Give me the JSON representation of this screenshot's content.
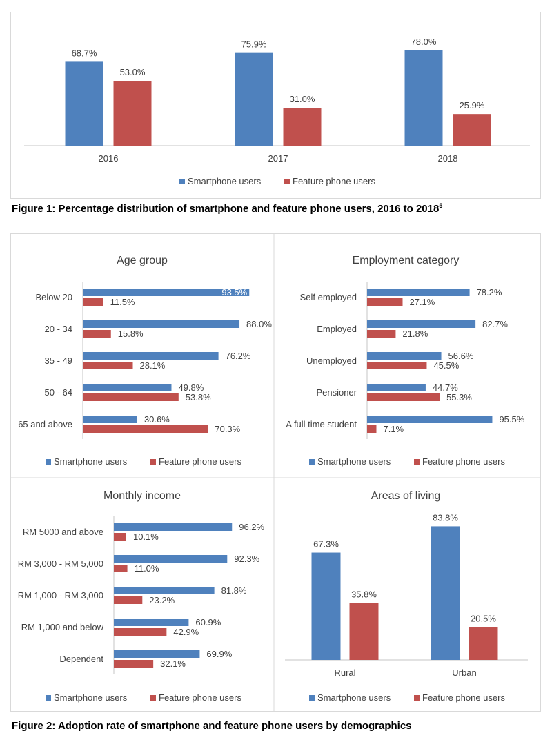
{
  "colors": {
    "smartphone": "#4f81bd",
    "feature": "#c0504d",
    "border": "#d9d9d9",
    "axis": "#d9d9d9"
  },
  "legend": [
    "Smartphone users",
    "Feature phone users"
  ],
  "figure1": {
    "caption": "Figure 1: Percentage distribution of smartphone and feature phone users, 2016 to 2018",
    "footnote": "5"
  },
  "figure2": {
    "caption": "Figure 2: Adoption rate of smartphone and feature phone users by demographics"
  },
  "chart_data": [
    {
      "type": "bar",
      "orientation": "vertical",
      "title": "",
      "categories": [
        "2016",
        "2017",
        "2018"
      ],
      "series": [
        {
          "name": "Smartphone users",
          "values": [
            68.7,
            75.9,
            78.0
          ],
          "labels": [
            "68.7%",
            "75.9%",
            "78.0%"
          ]
        },
        {
          "name": "Feature phone users",
          "values": [
            53.0,
            31.0,
            25.9
          ],
          "labels": [
            "53.0%",
            "31.0%",
            "25.9%"
          ]
        }
      ],
      "legend_position": "bottom",
      "grid": false
    },
    {
      "type": "bar",
      "orientation": "horizontal",
      "title": "Age group",
      "categories": [
        "Below 20",
        "20 - 34",
        "35 - 49",
        "50 - 64",
        "65 and above"
      ],
      "series": [
        {
          "name": "Smartphone users",
          "values": [
            93.5,
            88.0,
            76.2,
            49.8,
            30.6
          ],
          "labels": [
            "93.5%",
            "88.0%",
            "76.2%",
            "49.8%",
            "30.6%"
          ]
        },
        {
          "name": "Feature phone users",
          "values": [
            11.5,
            15.8,
            28.1,
            53.8,
            70.3
          ],
          "labels": [
            "11.5%",
            "15.8%",
            "28.1%",
            "53.8%",
            "70.3%"
          ]
        }
      ],
      "legend_position": "bottom",
      "grid": false
    },
    {
      "type": "bar",
      "orientation": "horizontal",
      "title": "Employment category",
      "categories": [
        "Self employed",
        "Employed",
        "Unemployed",
        "Pensioner",
        "A full time student"
      ],
      "series": [
        {
          "name": "Smartphone users",
          "values": [
            78.2,
            82.7,
            56.6,
            44.7,
            95.5
          ],
          "labels": [
            "78.2%",
            "82.7%",
            "56.6%",
            "44.7%",
            "95.5%"
          ]
        },
        {
          "name": "Feature phone users",
          "values": [
            27.1,
            21.8,
            45.5,
            55.3,
            7.1
          ],
          "labels": [
            "27.1%",
            "21.8%",
            "45.5%",
            "55.3%",
            "7.1%"
          ]
        }
      ],
      "legend_position": "bottom",
      "grid": false
    },
    {
      "type": "bar",
      "orientation": "horizontal",
      "title": "Monthly income",
      "categories": [
        "RM 5000 and above",
        "RM 3,000 - RM 5,000",
        "RM 1,000 - RM 3,000",
        "RM 1,000 and below",
        "Dependent"
      ],
      "series": [
        {
          "name": "Smartphone users",
          "values": [
            96.2,
            92.3,
            81.8,
            60.9,
            69.9
          ],
          "labels": [
            "96.2%",
            "92.3%",
            "81.8%",
            "60.9%",
            "69.9%"
          ]
        },
        {
          "name": "Feature phone users",
          "values": [
            10.1,
            11.0,
            23.2,
            42.9,
            32.1
          ],
          "labels": [
            "10.1%",
            "11.0%",
            "23.2%",
            "42.9%",
            "32.1%"
          ]
        }
      ],
      "legend_position": "bottom",
      "grid": false
    },
    {
      "type": "bar",
      "orientation": "vertical",
      "title": "Areas of living",
      "categories": [
        "Rural",
        "Urban"
      ],
      "series": [
        {
          "name": "Smartphone users",
          "values": [
            67.3,
            83.8
          ],
          "labels": [
            "67.3%",
            "83.8%"
          ]
        },
        {
          "name": "Feature phone users",
          "values": [
            35.8,
            20.5
          ],
          "labels": [
            "35.8%",
            "20.5%"
          ]
        }
      ],
      "legend_position": "bottom",
      "grid": false
    }
  ]
}
